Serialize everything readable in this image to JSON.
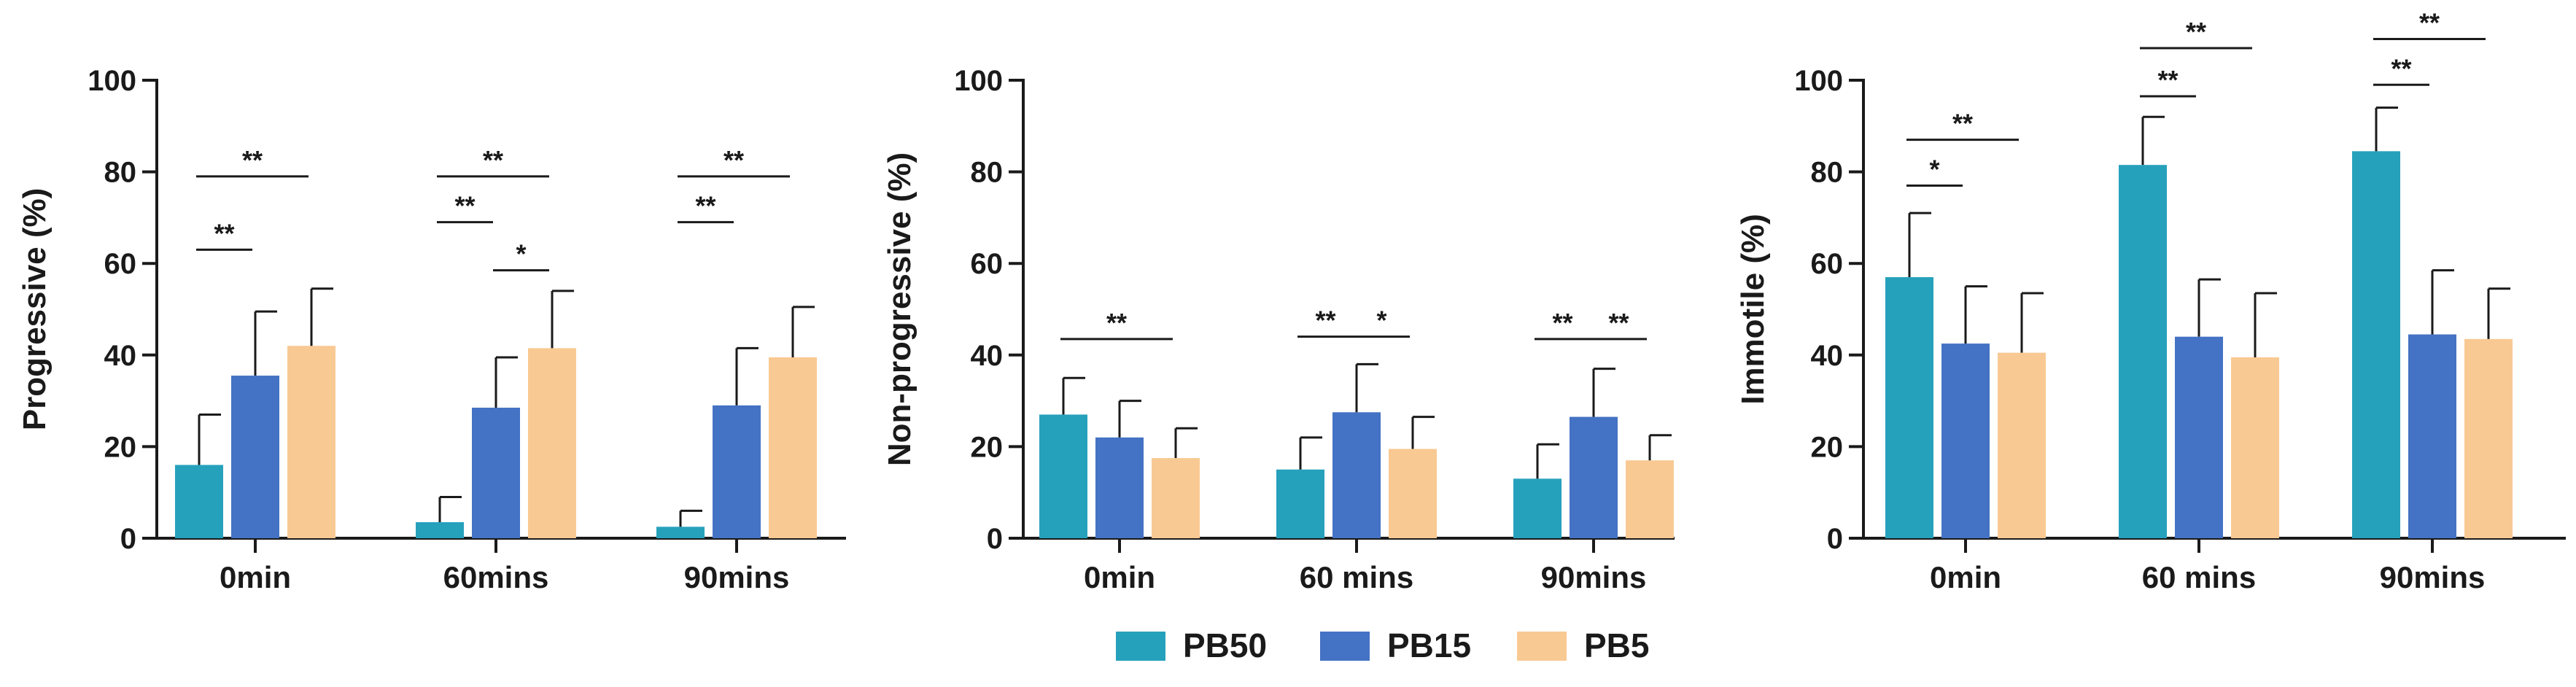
{
  "legend": {
    "items": [
      {
        "name": "PB50",
        "color": "#26a1bc"
      },
      {
        "name": "PB15",
        "color": "#4472c4"
      },
      {
        "name": "PB5",
        "color": "#f9c993"
      }
    ]
  },
  "chart_data": [
    {
      "type": "bar",
      "ylabel": "Progressive (%)",
      "xlabel": "",
      "ylim": [
        0,
        100
      ],
      "yticks": [
        0,
        20,
        40,
        60,
        80,
        100
      ],
      "categories": [
        "0min",
        "60mins",
        "90mins"
      ],
      "series": [
        {
          "name": "PB50",
          "color": "#26a1bc",
          "values": [
            16,
            3.5,
            2.5
          ],
          "errors": [
            11,
            5.5,
            3.5
          ]
        },
        {
          "name": "PB15",
          "color": "#4472c4",
          "values": [
            35.5,
            28.5,
            29
          ],
          "errors": [
            14,
            11,
            12.5
          ]
        },
        {
          "name": "PB5",
          "color": "#f9c993",
          "values": [
            42,
            41.5,
            39.5
          ],
          "errors": [
            12.5,
            12.5,
            11
          ]
        }
      ],
      "significance": [
        {
          "category": 0,
          "from": 0,
          "to": 1,
          "level": 63,
          "label": "**"
        },
        {
          "category": 0,
          "from": 0,
          "to": 2,
          "level": 79,
          "label": "**"
        },
        {
          "category": 1,
          "from": 0,
          "to": 1,
          "level": 69,
          "label": "**"
        },
        {
          "category": 1,
          "from": 0,
          "to": 2,
          "level": 79,
          "label": "**"
        },
        {
          "category": 1,
          "from": 1,
          "to": 2,
          "level": 58.5,
          "label": "*"
        },
        {
          "category": 2,
          "from": 0,
          "to": 1,
          "level": 69,
          "label": "**"
        },
        {
          "category": 2,
          "from": 0,
          "to": 2,
          "level": 79,
          "label": "**"
        }
      ]
    },
    {
      "type": "bar",
      "ylabel": "Non-progressive (%)",
      "xlabel": "",
      "ylim": [
        0,
        100
      ],
      "yticks": [
        0,
        20,
        40,
        60,
        80,
        100
      ],
      "categories": [
        "0min",
        "60 mins",
        "90mins"
      ],
      "series": [
        {
          "name": "PB50",
          "color": "#26a1bc",
          "values": [
            27,
            15,
            13
          ],
          "errors": [
            8,
            7,
            7.5
          ]
        },
        {
          "name": "PB15",
          "color": "#4472c4",
          "values": [
            22,
            27.5,
            26.5
          ],
          "errors": [
            8,
            10.5,
            10.5
          ]
        },
        {
          "name": "PB5",
          "color": "#f9c993",
          "values": [
            17.5,
            19.5,
            17
          ],
          "errors": [
            6.5,
            7,
            5.5
          ]
        }
      ],
      "significance": [
        {
          "category": 0,
          "from": 0,
          "to": 2,
          "level": 43.5,
          "label": "**"
        },
        {
          "category": 1,
          "from": 0,
          "to": 1,
          "level": 44,
          "label": "**"
        },
        {
          "category": 1,
          "from": 1,
          "to": 2,
          "level": 44,
          "label": "*"
        },
        {
          "category": 2,
          "from": 0,
          "to": 1,
          "level": 43.5,
          "label": "**"
        },
        {
          "category": 2,
          "from": 1,
          "to": 2,
          "level": 43.5,
          "label": "**"
        }
      ]
    },
    {
      "type": "bar",
      "ylabel": "Immotile (%)",
      "xlabel": "",
      "ylim": [
        0,
        100
      ],
      "yticks": [
        0,
        20,
        40,
        60,
        80,
        100
      ],
      "categories": [
        "0min",
        "60 mins",
        "90mins"
      ],
      "series": [
        {
          "name": "PB50",
          "color": "#26a1bc",
          "values": [
            57,
            81.5,
            84.5
          ],
          "errors": [
            14,
            10.5,
            9.5
          ]
        },
        {
          "name": "PB15",
          "color": "#4472c4",
          "values": [
            42.5,
            44,
            44.5
          ],
          "errors": [
            12.5,
            12.5,
            14
          ]
        },
        {
          "name": "PB5",
          "color": "#f9c993",
          "values": [
            40.5,
            39.5,
            43.5
          ],
          "errors": [
            13,
            14,
            11
          ]
        }
      ],
      "significance": [
        {
          "category": 0,
          "from": 0,
          "to": 1,
          "level": 77,
          "label": "*"
        },
        {
          "category": 0,
          "from": 0,
          "to": 2,
          "level": 87,
          "label": "**"
        },
        {
          "category": 1,
          "from": 0,
          "to": 1,
          "level": 96.5,
          "label": "**"
        },
        {
          "category": 1,
          "from": 0,
          "to": 2,
          "level": 107,
          "label": "**"
        },
        {
          "category": 2,
          "from": 0,
          "to": 1,
          "level": 99,
          "label": "**"
        },
        {
          "category": 2,
          "from": 0,
          "to": 2,
          "level": 109,
          "label": "**"
        }
      ]
    }
  ]
}
